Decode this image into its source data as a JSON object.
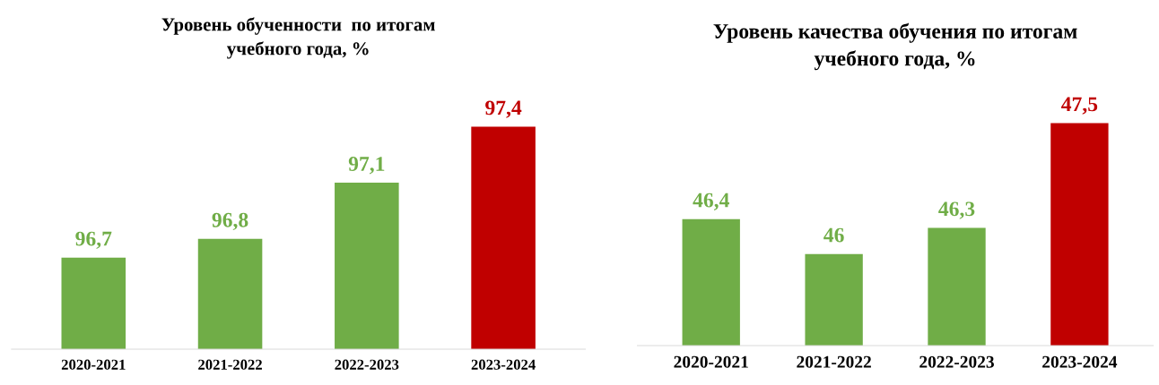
{
  "chart_data": [
    {
      "type": "bar",
      "title": "Уровень обученности  по итогам\nучебного года, %",
      "categories": [
        "2020-2021",
        "2021-2022",
        "2022-2023",
        "2023-2024"
      ],
      "values": [
        96.7,
        96.8,
        97.1,
        97.4
      ],
      "colors": [
        "#70ad47",
        "#70ad47",
        "#70ad47",
        "#c00000"
      ],
      "value_labels": [
        "96,7",
        "96,8",
        "97,1",
        "97,4"
      ],
      "tick_labels": "x",
      "grid": false,
      "legend": false
    },
    {
      "type": "bar",
      "title": "Уровень качества обучения по итогам\nучебного года, %",
      "categories": [
        "2020-2021",
        "2021-2022",
        "2022-2023",
        "2023-2024"
      ],
      "values": [
        46.4,
        46,
        46.3,
        47.5
      ],
      "colors": [
        "#70ad47",
        "#70ad47",
        "#70ad47",
        "#c00000"
      ],
      "value_labels": [
        "46,4",
        "46",
        "46,3",
        "47,5"
      ],
      "tick_labels": "x",
      "grid": false,
      "legend": false
    }
  ]
}
